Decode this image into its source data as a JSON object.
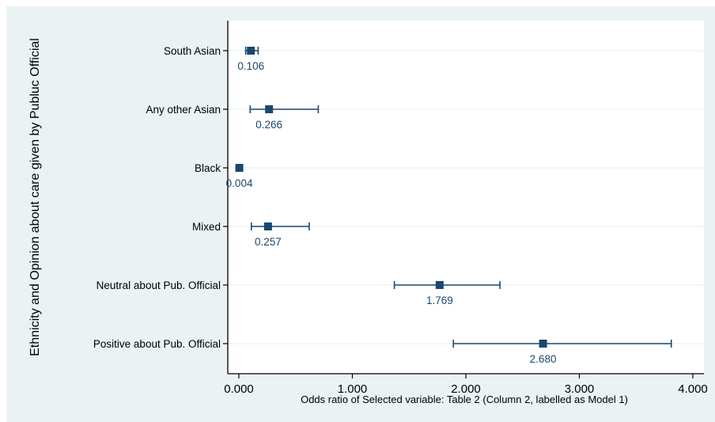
{
  "chart_data": {
    "type": "scatter",
    "variant": "coefficient-plot-with-confidence-intervals",
    "xlabel": "Odds ratio of Selected variable: Table 2 (Column 2, labelled as Model 1)",
    "ylabel": "Ethnicity and Opinion about care given by Publuc Official",
    "xlim": [
      -0.1,
      4.1
    ],
    "xticks": [
      "0.000",
      "1.000",
      "2.000",
      "3.000",
      "4.000"
    ],
    "xtick_values": [
      0,
      1,
      2,
      3,
      4
    ],
    "grid": true,
    "legend": "none",
    "categories": [
      "South Asian",
      "Any other Asian",
      "Black",
      "Mixed",
      "Neutral about Pub. Official",
      "Positive about Pub. Official"
    ],
    "estimates": [
      0.106,
      0.266,
      0.004,
      0.257,
      1.769,
      2.68
    ],
    "estimate_labels": [
      "0.106",
      "0.266",
      "0.004",
      "0.257",
      "1.769",
      "2.680"
    ],
    "ci_lower": [
      0.06,
      0.1,
      -0.01,
      0.11,
      1.37,
      1.89
    ],
    "ci_upper": [
      0.17,
      0.7,
      0.02,
      0.62,
      2.3,
      3.81
    ],
    "colors": {
      "marker": "#1a476f",
      "background": "#eaf2f3",
      "plot_region": "#ffffff",
      "grid": "#eaf2f3"
    }
  }
}
